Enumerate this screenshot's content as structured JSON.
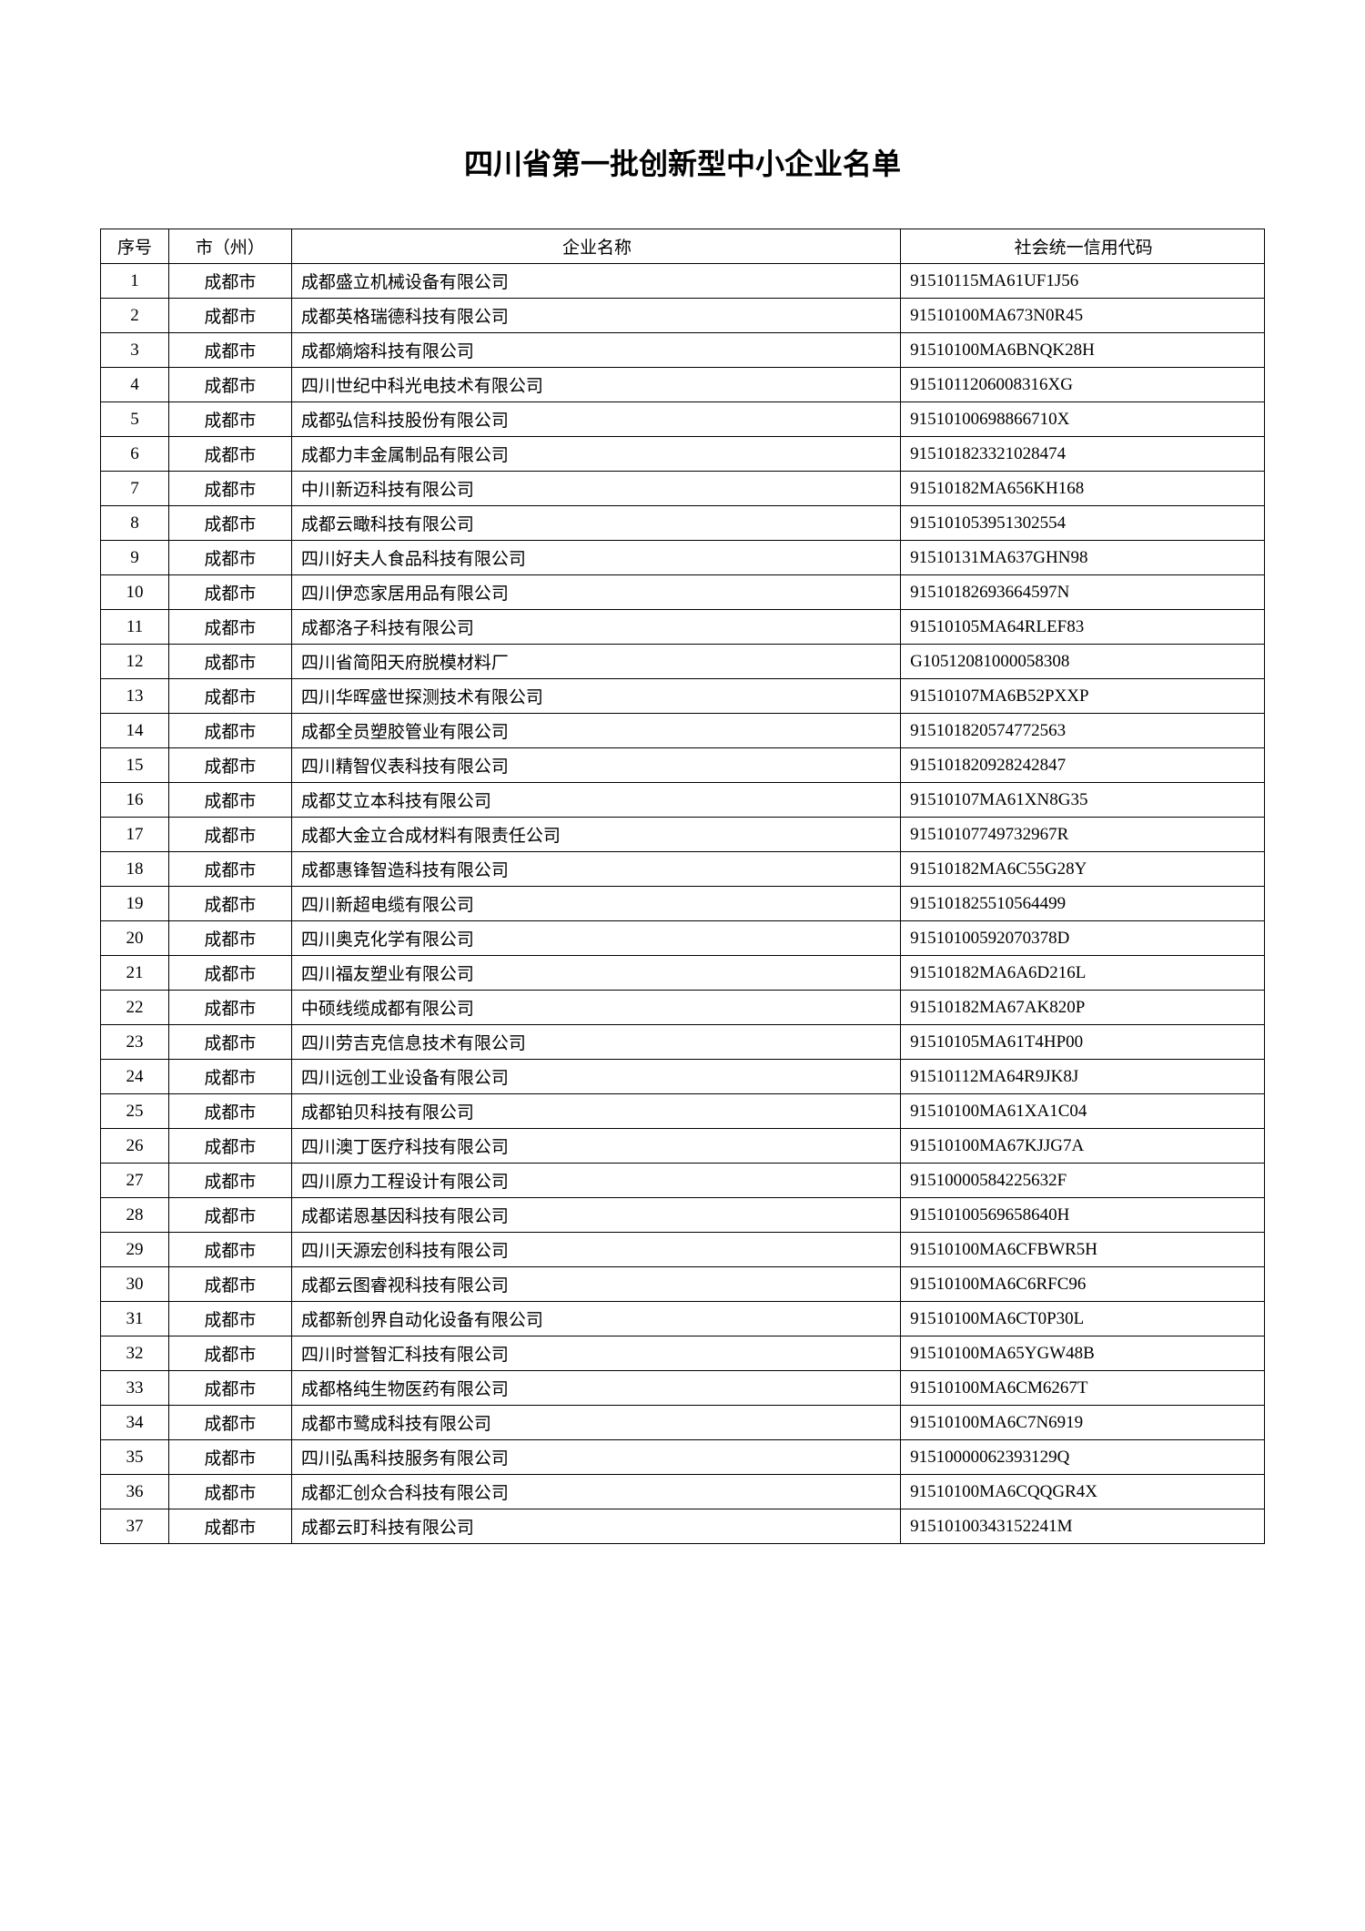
{
  "title": "四川省第一批创新型中小企业名单",
  "headers": {
    "num": "序号",
    "city": "市（州）",
    "company": "企业名称",
    "code": "社会统一信用代码"
  },
  "rows": [
    {
      "num": "1",
      "city": "成都市",
      "company": "成都盛立机械设备有限公司",
      "code": "91510115MA61UF1J56"
    },
    {
      "num": "2",
      "city": "成都市",
      "company": "成都英格瑞德科技有限公司",
      "code": "91510100MA673N0R45"
    },
    {
      "num": "3",
      "city": "成都市",
      "company": "成都熵熔科技有限公司",
      "code": "91510100MA6BNQK28H"
    },
    {
      "num": "4",
      "city": "成都市",
      "company": "四川世纪中科光电技术有限公司",
      "code": "9151011206008316XG"
    },
    {
      "num": "5",
      "city": "成都市",
      "company": "成都弘信科技股份有限公司",
      "code": "91510100698866710X"
    },
    {
      "num": "6",
      "city": "成都市",
      "company": "成都力丰金属制品有限公司",
      "code": "915101823321028474"
    },
    {
      "num": "7",
      "city": "成都市",
      "company": "中川新迈科技有限公司",
      "code": "91510182MA656KH168"
    },
    {
      "num": "8",
      "city": "成都市",
      "company": "成都云瞰科技有限公司",
      "code": "915101053951302554"
    },
    {
      "num": "9",
      "city": "成都市",
      "company": "四川好夫人食品科技有限公司",
      "code": "91510131MA637GHN98"
    },
    {
      "num": "10",
      "city": "成都市",
      "company": "四川伊恋家居用品有限公司",
      "code": "91510182693664597N"
    },
    {
      "num": "11",
      "city": "成都市",
      "company": "成都洛子科技有限公司",
      "code": "91510105MA64RLEF83"
    },
    {
      "num": "12",
      "city": "成都市",
      "company": "四川省简阳天府脱模材料厂",
      "code": "G10512081000058308"
    },
    {
      "num": "13",
      "city": "成都市",
      "company": "四川华晖盛世探测技术有限公司",
      "code": "91510107MA6B52PXXP"
    },
    {
      "num": "14",
      "city": "成都市",
      "company": "成都全员塑胶管业有限公司",
      "code": "915101820574772563"
    },
    {
      "num": "15",
      "city": "成都市",
      "company": "四川精智仪表科技有限公司",
      "code": "915101820928242847"
    },
    {
      "num": "16",
      "city": "成都市",
      "company": "成都艾立本科技有限公司",
      "code": "91510107MA61XN8G35"
    },
    {
      "num": "17",
      "city": "成都市",
      "company": "成都大金立合成材料有限责任公司",
      "code": "91510107749732967R"
    },
    {
      "num": "18",
      "city": "成都市",
      "company": "成都惠锋智造科技有限公司",
      "code": "91510182MA6C55G28Y"
    },
    {
      "num": "19",
      "city": "成都市",
      "company": "四川新超电缆有限公司",
      "code": "915101825510564499"
    },
    {
      "num": "20",
      "city": "成都市",
      "company": "四川奥克化学有限公司",
      "code": "91510100592070378D"
    },
    {
      "num": "21",
      "city": "成都市",
      "company": "四川福友塑业有限公司",
      "code": "91510182MA6A6D216L"
    },
    {
      "num": "22",
      "city": "成都市",
      "company": "中硕线缆成都有限公司",
      "code": "91510182MA67AK820P"
    },
    {
      "num": "23",
      "city": "成都市",
      "company": "四川劳吉克信息技术有限公司",
      "code": "91510105MA61T4HP00"
    },
    {
      "num": "24",
      "city": "成都市",
      "company": "四川远创工业设备有限公司",
      "code": "91510112MA64R9JK8J"
    },
    {
      "num": "25",
      "city": "成都市",
      "company": "成都铂贝科技有限公司",
      "code": "91510100MA61XA1C04"
    },
    {
      "num": "26",
      "city": "成都市",
      "company": "四川澳丁医疗科技有限公司",
      "code": "91510100MA67KJJG7A"
    },
    {
      "num": "27",
      "city": "成都市",
      "company": "四川原力工程设计有限公司",
      "code": "91510000584225632F"
    },
    {
      "num": "28",
      "city": "成都市",
      "company": "成都诺恩基因科技有限公司",
      "code": "91510100569658640H"
    },
    {
      "num": "29",
      "city": "成都市",
      "company": "四川天源宏创科技有限公司",
      "code": "91510100MA6CFBWR5H"
    },
    {
      "num": "30",
      "city": "成都市",
      "company": "成都云图睿视科技有限公司",
      "code": "91510100MA6C6RFC96"
    },
    {
      "num": "31",
      "city": "成都市",
      "company": "成都新创界自动化设备有限公司",
      "code": "91510100MA6CT0P30L"
    },
    {
      "num": "32",
      "city": "成都市",
      "company": "四川时誉智汇科技有限公司",
      "code": "91510100MA65YGW48B"
    },
    {
      "num": "33",
      "city": "成都市",
      "company": "成都格纯生物医药有限公司",
      "code": "91510100MA6CM6267T"
    },
    {
      "num": "34",
      "city": "成都市",
      "company": "成都市鹭成科技有限公司",
      "code": "91510100MA6C7N6919"
    },
    {
      "num": "35",
      "city": "成都市",
      "company": "四川弘禹科技服务有限公司",
      "code": "91510000062393129Q"
    },
    {
      "num": "36",
      "city": "成都市",
      "company": "成都汇创众合科技有限公司",
      "code": "91510100MA6CQQGR4X"
    },
    {
      "num": "37",
      "city": "成都市",
      "company": "成都云盯科技有限公司",
      "code": "91510100343152241M"
    }
  ]
}
